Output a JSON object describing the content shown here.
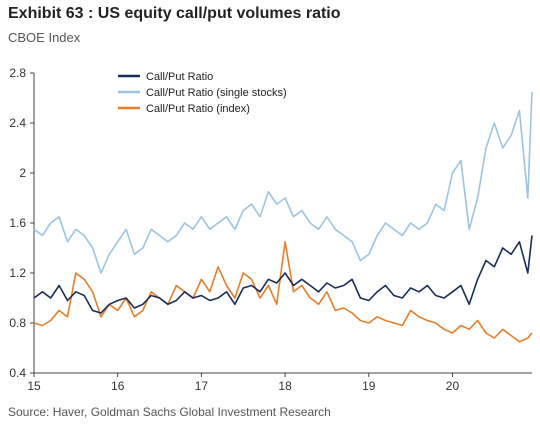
{
  "title": "Exhibit 63 : US equity call/put volumes ratio",
  "subtitle": "CBOE Index",
  "source": "Source: Haver, Goldman Sachs Global Investment Research",
  "chart_data": {
    "type": "line",
    "ylim": [
      0.4,
      2.8
    ],
    "yticks": [
      "2.8",
      "2.4",
      "2",
      "1.6",
      "1.2",
      "0.8",
      "0.4"
    ],
    "xlim": [
      15,
      20.95
    ],
    "xticks": [
      "15",
      "16",
      "17",
      "18",
      "19",
      "20"
    ],
    "grid": false,
    "legend_position": "top-left",
    "series": [
      {
        "name": "Call/Put Ratio",
        "color": "#1a2d5a",
        "x": [
          15.0,
          15.1,
          15.2,
          15.3,
          15.4,
          15.5,
          15.6,
          15.7,
          15.8,
          15.9,
          16.0,
          16.1,
          16.2,
          16.3,
          16.4,
          16.5,
          16.6,
          16.7,
          16.8,
          16.9,
          17.0,
          17.1,
          17.2,
          17.3,
          17.4,
          17.5,
          17.6,
          17.7,
          17.8,
          17.9,
          18.0,
          18.1,
          18.2,
          18.3,
          18.4,
          18.5,
          18.6,
          18.7,
          18.8,
          18.9,
          19.0,
          19.1,
          19.2,
          19.3,
          19.4,
          19.5,
          19.6,
          19.7,
          19.8,
          19.9,
          20.0,
          20.1,
          20.2,
          20.3,
          20.4,
          20.5,
          20.6,
          20.7,
          20.8,
          20.9,
          20.95
        ],
        "y": [
          1.0,
          1.05,
          1.0,
          1.1,
          0.98,
          1.05,
          1.02,
          0.9,
          0.88,
          0.95,
          0.98,
          1.0,
          0.92,
          0.95,
          1.02,
          1.0,
          0.95,
          0.98,
          1.05,
          1.0,
          1.02,
          0.98,
          1.0,
          1.05,
          0.95,
          1.08,
          1.1,
          1.05,
          1.15,
          1.12,
          1.2,
          1.1,
          1.15,
          1.1,
          1.05,
          1.12,
          1.08,
          1.1,
          1.15,
          1.0,
          0.98,
          1.05,
          1.1,
          1.02,
          1.0,
          1.08,
          1.05,
          1.1,
          1.02,
          1.0,
          1.05,
          1.1,
          0.95,
          1.15,
          1.3,
          1.25,
          1.4,
          1.35,
          1.45,
          1.2,
          1.5
        ]
      },
      {
        "name": "Call/Put Ratio (single stocks)",
        "color": "#9cc4e4",
        "x": [
          15.0,
          15.1,
          15.2,
          15.3,
          15.4,
          15.5,
          15.6,
          15.7,
          15.8,
          15.9,
          16.0,
          16.1,
          16.2,
          16.3,
          16.4,
          16.5,
          16.6,
          16.7,
          16.8,
          16.9,
          17.0,
          17.1,
          17.2,
          17.3,
          17.4,
          17.5,
          17.6,
          17.7,
          17.8,
          17.9,
          18.0,
          18.1,
          18.2,
          18.3,
          18.4,
          18.5,
          18.6,
          18.7,
          18.8,
          18.9,
          19.0,
          19.1,
          19.2,
          19.3,
          19.4,
          19.5,
          19.6,
          19.7,
          19.8,
          19.9,
          20.0,
          20.1,
          20.2,
          20.3,
          20.4,
          20.5,
          20.6,
          20.7,
          20.8,
          20.9,
          20.95
        ],
        "y": [
          1.55,
          1.5,
          1.6,
          1.65,
          1.45,
          1.55,
          1.5,
          1.4,
          1.2,
          1.35,
          1.45,
          1.55,
          1.35,
          1.4,
          1.55,
          1.5,
          1.45,
          1.5,
          1.6,
          1.55,
          1.65,
          1.55,
          1.6,
          1.65,
          1.55,
          1.7,
          1.75,
          1.65,
          1.85,
          1.75,
          1.8,
          1.65,
          1.7,
          1.6,
          1.55,
          1.65,
          1.55,
          1.5,
          1.45,
          1.3,
          1.35,
          1.5,
          1.6,
          1.55,
          1.5,
          1.6,
          1.55,
          1.6,
          1.75,
          1.7,
          2.0,
          2.1,
          1.55,
          1.8,
          2.2,
          2.4,
          2.2,
          2.3,
          2.5,
          1.8,
          2.65
        ]
      },
      {
        "name": "Call/Put Ratio (index)",
        "color": "#e87d2a",
        "x": [
          15.0,
          15.1,
          15.2,
          15.3,
          15.4,
          15.5,
          15.6,
          15.7,
          15.8,
          15.9,
          16.0,
          16.1,
          16.2,
          16.3,
          16.4,
          16.5,
          16.6,
          16.7,
          16.8,
          16.9,
          17.0,
          17.1,
          17.2,
          17.3,
          17.4,
          17.5,
          17.6,
          17.7,
          17.8,
          17.9,
          18.0,
          18.1,
          18.2,
          18.3,
          18.4,
          18.5,
          18.6,
          18.7,
          18.8,
          18.9,
          19.0,
          19.1,
          19.2,
          19.3,
          19.4,
          19.5,
          19.6,
          19.7,
          19.8,
          19.9,
          20.0,
          20.1,
          20.2,
          20.3,
          20.4,
          20.5,
          20.6,
          20.7,
          20.8,
          20.9,
          20.95
        ],
        "y": [
          0.8,
          0.78,
          0.82,
          0.9,
          0.85,
          1.2,
          1.15,
          1.05,
          0.85,
          0.95,
          0.9,
          1.0,
          0.85,
          0.9,
          1.05,
          1.0,
          0.95,
          1.1,
          1.05,
          1.0,
          1.15,
          1.05,
          1.25,
          1.1,
          1.0,
          1.2,
          1.15,
          1.0,
          1.1,
          0.95,
          1.45,
          1.05,
          1.1,
          1.0,
          0.95,
          1.05,
          0.9,
          0.92,
          0.88,
          0.82,
          0.8,
          0.85,
          0.82,
          0.8,
          0.78,
          0.9,
          0.85,
          0.82,
          0.8,
          0.75,
          0.72,
          0.78,
          0.75,
          0.82,
          0.72,
          0.68,
          0.75,
          0.7,
          0.65,
          0.68,
          0.72
        ]
      }
    ]
  }
}
